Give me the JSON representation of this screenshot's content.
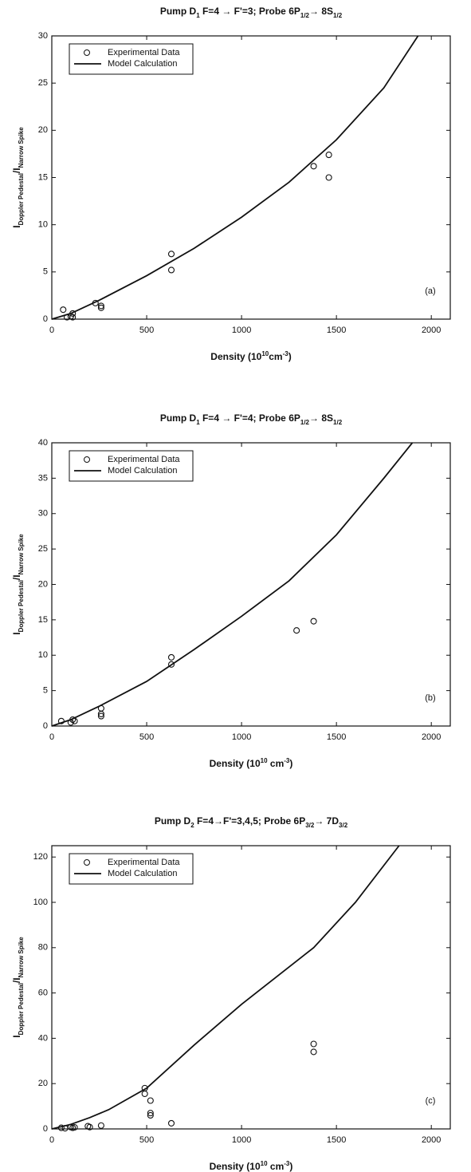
{
  "chart_data": [
    {
      "type": "scatter",
      "title": [
        "Pump D",
        "1",
        " F=4 → F'=3;  Probe 6P",
        "1/2",
        "→ 8S",
        "1/2"
      ],
      "x_label": [
        "Density (10",
        "10",
        "cm",
        "-3",
        ")"
      ],
      "y_label": [
        "I",
        "Doppler Pedestal",
        "/I",
        "Narrow Spike"
      ],
      "annotation": "(a)",
      "xlim": [
        0,
        2100
      ],
      "xticks": [
        0,
        500,
        1000,
        1500,
        2000
      ],
      "ylim": [
        0,
        30
      ],
      "yticks": [
        0,
        5,
        10,
        15,
        20,
        25,
        30
      ],
      "series": [
        {
          "name": "Experimental Data",
          "type": "scatter",
          "color": "#111111",
          "x": [
            60,
            80,
            100,
            110,
            110,
            230,
            260,
            260,
            630,
            630,
            1380,
            1460,
            1460
          ],
          "values": [
            1.0,
            0.2,
            0.3,
            0.6,
            0.2,
            1.7,
            1.4,
            1.2,
            6.9,
            5.2,
            16.2,
            17.4,
            15.0
          ]
        },
        {
          "name": "Model Calculation",
          "type": "line",
          "color": "#111111",
          "x": [
            0,
            100,
            250,
            500,
            750,
            1000,
            1250,
            1500,
            1750,
            1930
          ],
          "values": [
            0,
            0.6,
            2.0,
            4.6,
            7.5,
            10.8,
            14.5,
            19.0,
            24.5,
            30
          ]
        }
      ]
    },
    {
      "type": "scatter",
      "title": [
        "Pump D",
        "1",
        " F=4 → F'=4;  Probe 6P",
        "1/2",
        "→ 8S",
        "1/2"
      ],
      "x_label": [
        "Density (10",
        "10",
        " cm",
        "-3",
        ")"
      ],
      "y_label": [
        "I",
        "Doppler Pedestal",
        "/I",
        "Narrow Spike"
      ],
      "annotation": "(b)",
      "xlim": [
        0,
        2100
      ],
      "xticks": [
        0,
        500,
        1000,
        1500,
        2000
      ],
      "ylim": [
        0,
        40
      ],
      "yticks": [
        0,
        5,
        10,
        15,
        20,
        25,
        30,
        35,
        40
      ],
      "series": [
        {
          "name": "Experimental Data",
          "type": "scatter",
          "color": "#111111",
          "x": [
            50,
            100,
            110,
            120,
            260,
            260,
            260,
            630,
            630,
            1290,
            1380
          ],
          "values": [
            0.7,
            0.5,
            0.9,
            0.7,
            2.5,
            1.7,
            1.4,
            9.7,
            8.7,
            13.5,
            14.8
          ]
        },
        {
          "name": "Model Calculation",
          "type": "line",
          "color": "#111111",
          "x": [
            0,
            100,
            250,
            500,
            650,
            750,
            1000,
            1250,
            1500,
            1750,
            1900
          ],
          "values": [
            0,
            0.9,
            2.8,
            6.3,
            9.0,
            10.8,
            15.5,
            20.5,
            27.0,
            35.0,
            40
          ]
        }
      ]
    },
    {
      "type": "scatter",
      "title": [
        "Pump D",
        "2",
        " F=4→F'=3,4,5;    Probe 6P",
        "3/2",
        "→ 7D",
        "3/2"
      ],
      "x_label": [
        "Density (10",
        "10",
        " cm",
        "-3",
        ")"
      ],
      "y_label": [
        "I",
        "Doppler Pedestal",
        "/I",
        "Narrow Spike"
      ],
      "annotation": "(c)",
      "xlim": [
        0,
        2100
      ],
      "xticks": [
        0,
        500,
        1000,
        1500,
        2000
      ],
      "ylim": [
        0,
        125
      ],
      "yticks": [
        0,
        20,
        40,
        60,
        80,
        100,
        120
      ],
      "series": [
        {
          "name": "Experimental Data",
          "type": "scatter",
          "color": "#111111",
          "x": [
            50,
            70,
            100,
            110,
            120,
            190,
            200,
            260,
            490,
            490,
            520,
            520,
            520,
            630,
            1380,
            1380
          ],
          "values": [
            0.5,
            0.3,
            0.8,
            0.5,
            0.7,
            1.2,
            0.8,
            1.5,
            18,
            15.5,
            12.5,
            7,
            6,
            2.5,
            37.5,
            34
          ]
        },
        {
          "name": "Model Calculation",
          "type": "line",
          "color": "#111111",
          "x": [
            0,
            100,
            200,
            300,
            500,
            750,
            1000,
            1380,
            1600,
            1830
          ],
          "values": [
            0,
            2,
            5,
            8.5,
            18,
            37,
            55,
            80,
            100,
            125
          ]
        }
      ]
    }
  ]
}
